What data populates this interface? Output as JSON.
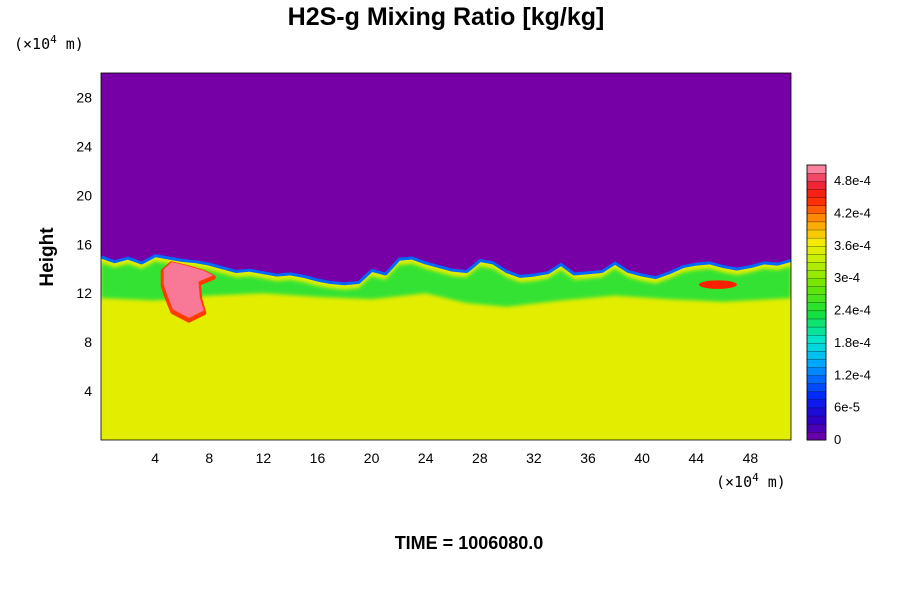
{
  "chart_data": {
    "type": "heatmap",
    "title": "H2S-g Mixing Ratio [kg/kg]",
    "ylabel": "Height",
    "x_unit_prefix": "(×10",
    "x_unit_exp": "4",
    "x_unit_suffix": " m)",
    "y_unit_prefix": "(×10",
    "y_unit_exp": "4",
    "y_unit_suffix": " m)",
    "xlim": [
      0,
      51
    ],
    "ylim": [
      0,
      30
    ],
    "x_ticks": [
      4,
      8,
      12,
      16,
      20,
      24,
      28,
      32,
      36,
      40,
      44,
      48
    ],
    "y_ticks": [
      4,
      8,
      12,
      16,
      20,
      24,
      28
    ],
    "color_min": 0,
    "color_max": 0.00051,
    "colorbar_ticks": [
      {
        "value": 0,
        "label": "0"
      },
      {
        "value": 6e-05,
        "label": "6e-5"
      },
      {
        "value": 0.00012,
        "label": "1.2e-4"
      },
      {
        "value": 0.00018,
        "label": "1.8e-4"
      },
      {
        "value": 0.00024,
        "label": "2.4e-4"
      },
      {
        "value": 0.0003,
        "label": "3e-4"
      },
      {
        "value": 0.00036,
        "label": "3.6e-4"
      },
      {
        "value": 0.00042,
        "label": "4.2e-4"
      },
      {
        "value": 0.00048,
        "label": "4.8e-4"
      }
    ],
    "regions": {
      "upper_layer_value": 0,
      "lower_layer_value": 0.000355,
      "interface_heights": [
        {
          "x": 0,
          "y": 15.1
        },
        {
          "x": 1,
          "y": 14.7
        },
        {
          "x": 2,
          "y": 15.0
        },
        {
          "x": 3,
          "y": 14.6
        },
        {
          "x": 4,
          "y": 15.2
        },
        {
          "x": 5,
          "y": 15.0
        },
        {
          "x": 6,
          "y": 14.8
        },
        {
          "x": 7,
          "y": 14.7
        },
        {
          "x": 8,
          "y": 14.5
        },
        {
          "x": 9,
          "y": 14.2
        },
        {
          "x": 10,
          "y": 13.9
        },
        {
          "x": 11,
          "y": 14.0
        },
        {
          "x": 12,
          "y": 13.8
        },
        {
          "x": 13,
          "y": 13.6
        },
        {
          "x": 14,
          "y": 13.7
        },
        {
          "x": 15,
          "y": 13.5
        },
        {
          "x": 16,
          "y": 13.2
        },
        {
          "x": 17,
          "y": 13.0
        },
        {
          "x": 18,
          "y": 12.9
        },
        {
          "x": 19,
          "y": 13.0
        },
        {
          "x": 20,
          "y": 14.0
        },
        {
          "x": 21,
          "y": 13.7
        },
        {
          "x": 22,
          "y": 14.9
        },
        {
          "x": 23,
          "y": 15.0
        },
        {
          "x": 24,
          "y": 14.6
        },
        {
          "x": 25,
          "y": 14.3
        },
        {
          "x": 26,
          "y": 14.0
        },
        {
          "x": 27,
          "y": 13.9
        },
        {
          "x": 28,
          "y": 14.8
        },
        {
          "x": 29,
          "y": 14.6
        },
        {
          "x": 30,
          "y": 13.9
        },
        {
          "x": 31,
          "y": 13.5
        },
        {
          "x": 32,
          "y": 13.6
        },
        {
          "x": 33,
          "y": 13.8
        },
        {
          "x": 34,
          "y": 14.5
        },
        {
          "x": 35,
          "y": 13.7
        },
        {
          "x": 36,
          "y": 13.8
        },
        {
          "x": 37,
          "y": 13.9
        },
        {
          "x": 38,
          "y": 14.6
        },
        {
          "x": 39,
          "y": 13.9
        },
        {
          "x": 40,
          "y": 13.6
        },
        {
          "x": 41,
          "y": 13.4
        },
        {
          "x": 42,
          "y": 13.8
        },
        {
          "x": 43,
          "y": 14.3
        },
        {
          "x": 44,
          "y": 14.5
        },
        {
          "x": 45,
          "y": 14.6
        },
        {
          "x": 46,
          "y": 14.3
        },
        {
          "x": 47,
          "y": 14.1
        },
        {
          "x": 48,
          "y": 14.3
        },
        {
          "x": 49,
          "y": 14.6
        },
        {
          "x": 50,
          "y": 14.5
        },
        {
          "x": 51,
          "y": 14.8
        }
      ],
      "mixed_base_heights": [
        {
          "x": 0,
          "y": 11.6
        },
        {
          "x": 4,
          "y": 11.4
        },
        {
          "x": 8,
          "y": 11.8
        },
        {
          "x": 12,
          "y": 12.0
        },
        {
          "x": 16,
          "y": 11.7
        },
        {
          "x": 20,
          "y": 11.5
        },
        {
          "x": 24,
          "y": 12.0
        },
        {
          "x": 27,
          "y": 11.2
        },
        {
          "x": 30,
          "y": 10.9
        },
        {
          "x": 34,
          "y": 11.4
        },
        {
          "x": 38,
          "y": 11.8
        },
        {
          "x": 42,
          "y": 11.5
        },
        {
          "x": 46,
          "y": 11.3
        },
        {
          "x": 51,
          "y": 11.6
        }
      ],
      "plume": [
        {
          "x": 4.6,
          "y": 13.8
        },
        {
          "x": 5.2,
          "y": 14.4
        },
        {
          "x": 6.4,
          "y": 14.1
        },
        {
          "x": 7.6,
          "y": 13.7
        },
        {
          "x": 8.3,
          "y": 13.3
        },
        {
          "x": 7.2,
          "y": 12.8
        },
        {
          "x": 7.3,
          "y": 11.5
        },
        {
          "x": 7.6,
          "y": 10.4
        },
        {
          "x": 6.5,
          "y": 9.8
        },
        {
          "x": 5.3,
          "y": 10.5
        },
        {
          "x": 4.9,
          "y": 11.6
        },
        {
          "x": 4.6,
          "y": 12.6
        }
      ],
      "plume_value": 0.0005,
      "hotspot_right": {
        "x": 45.6,
        "y": 12.7,
        "rx": 1.4,
        "ry": 0.35,
        "value": 0.00045
      }
    }
  },
  "footer": {
    "time_label": "TIME = 1006080.0"
  }
}
